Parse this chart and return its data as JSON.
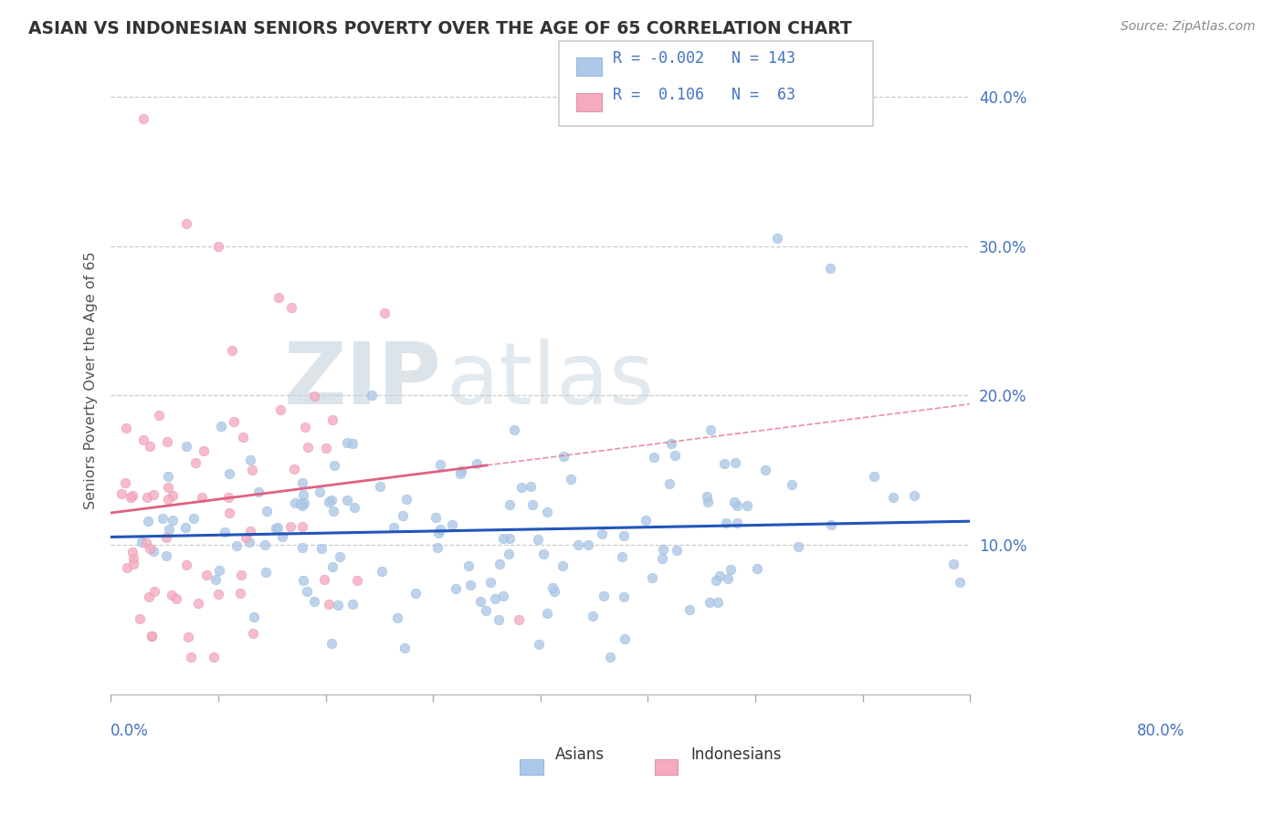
{
  "title": "ASIAN VS INDONESIAN SENIORS POVERTY OVER THE AGE OF 65 CORRELATION CHART",
  "source": "Source: ZipAtlas.com",
  "ylabel": "Seniors Poverty Over the Age of 65",
  "xlim": [
    0.0,
    0.8
  ],
  "ylim": [
    0.0,
    0.42
  ],
  "yticks": [
    0.1,
    0.2,
    0.3,
    0.4
  ],
  "ytick_labels": [
    "10.0%",
    "20.0%",
    "30.0%",
    "40.0%"
  ],
  "legend_r_asian": "-0.002",
  "legend_n_asian": "143",
  "legend_r_indo": "0.106",
  "legend_n_indo": "63",
  "color_asian": "#adc8e8",
  "color_indo": "#f5aabe",
  "line_color_asian": "#2255bb",
  "line_color_indo": "#e06080",
  "watermark_bold": "ZIP",
  "watermark_light": "atlas",
  "background_color": "#ffffff",
  "grid_color": "#cccccc",
  "title_color": "#333333",
  "source_color": "#888888",
  "axis_label_color": "#555555",
  "tick_color": "#4472c4"
}
